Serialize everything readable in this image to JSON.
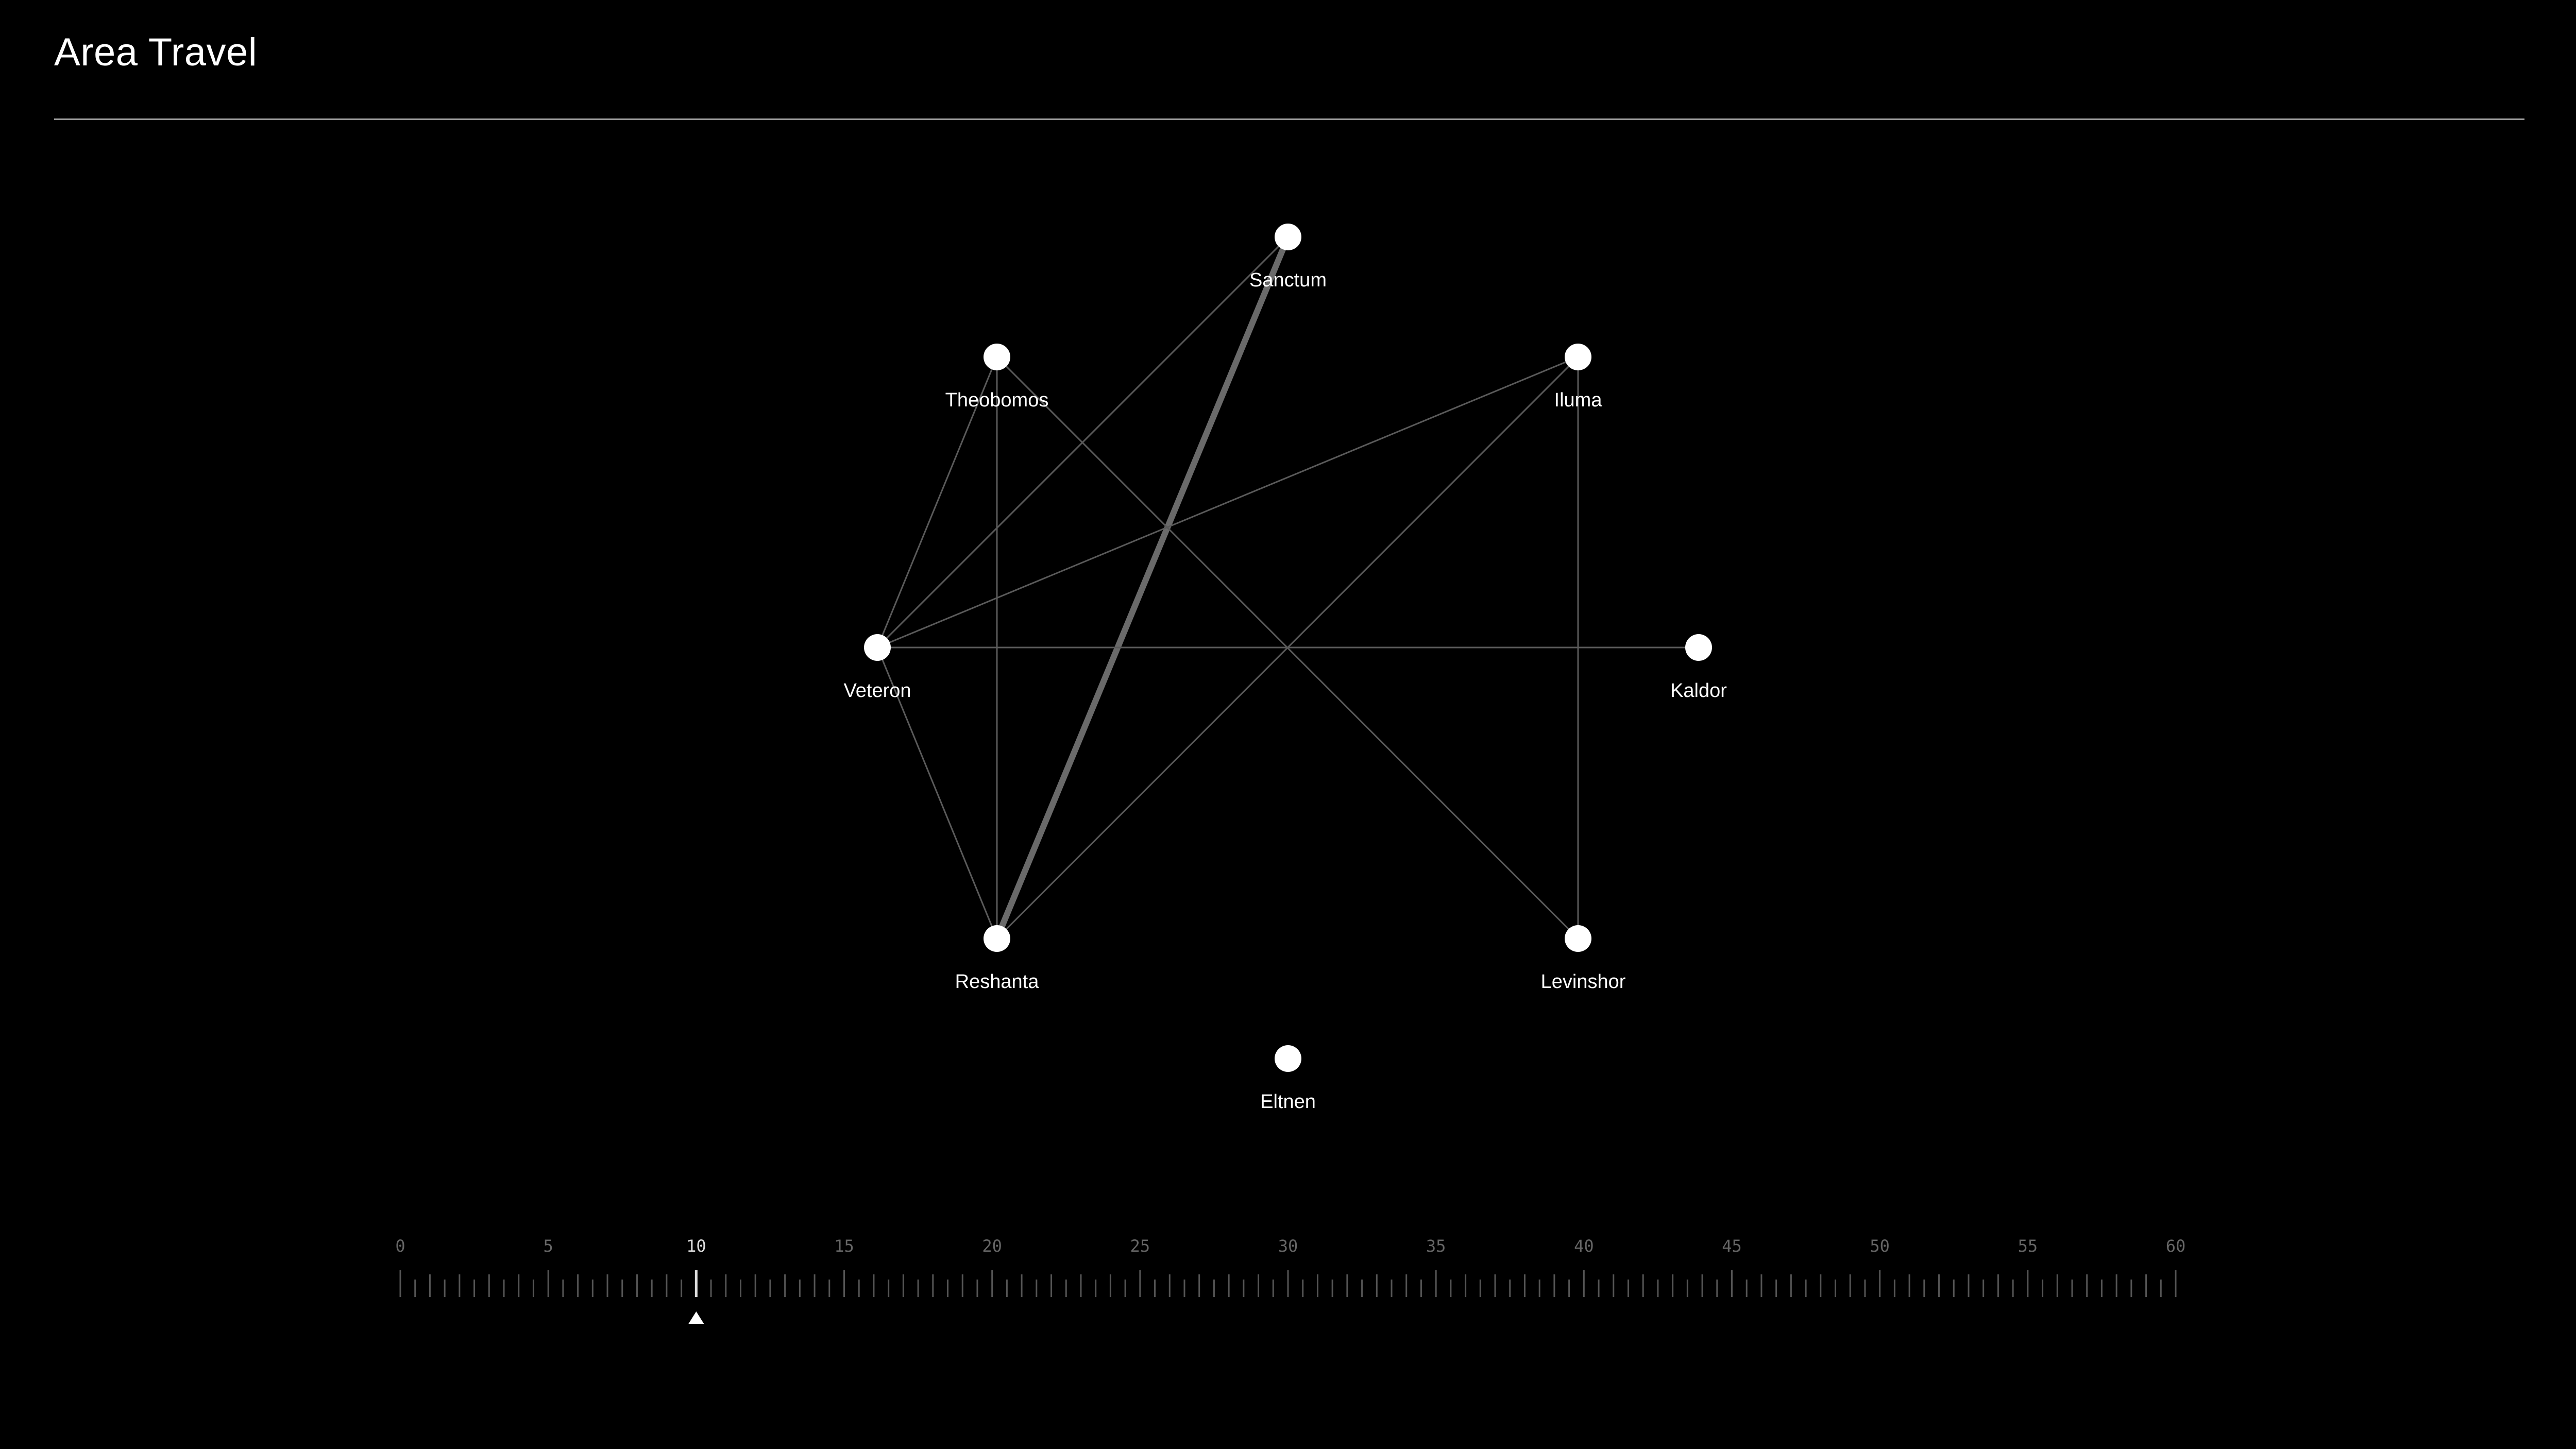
{
  "header": {
    "title": "Area Travel"
  },
  "nodes": [
    {
      "id": "sanctum",
      "label": "Sanctum"
    },
    {
      "id": "theobomos",
      "label": "Theobomos"
    },
    {
      "id": "iluma",
      "label": "Iluma"
    },
    {
      "id": "veteron",
      "label": "Veteron"
    },
    {
      "id": "kaldor",
      "label": "Kaldor"
    },
    {
      "id": "reshanta",
      "label": "Reshanta"
    },
    {
      "id": "levinshor",
      "label": "Levinshor"
    },
    {
      "id": "eltnen",
      "label": "Eltnen"
    }
  ],
  "edges": [
    {
      "from": "sanctum",
      "to": "reshanta",
      "highlighted": true
    },
    {
      "from": "sanctum",
      "to": "veteron",
      "highlighted": false
    },
    {
      "from": "theobomos",
      "to": "veteron",
      "highlighted": false
    },
    {
      "from": "theobomos",
      "to": "reshanta",
      "highlighted": false
    },
    {
      "from": "theobomos",
      "to": "levinshor",
      "highlighted": false
    },
    {
      "from": "iluma",
      "to": "veteron",
      "highlighted": false
    },
    {
      "from": "iluma",
      "to": "reshanta",
      "highlighted": false
    },
    {
      "from": "iluma",
      "to": "levinshor",
      "highlighted": false
    },
    {
      "from": "veteron",
      "to": "kaldor",
      "highlighted": false
    },
    {
      "from": "veteron",
      "to": "reshanta",
      "highlighted": false
    }
  ],
  "timeline": {
    "min": 0,
    "max": 60,
    "label_step": 5,
    "minor_step": 0.5,
    "labels": [
      "0",
      "5",
      "10",
      "15",
      "20",
      "25",
      "30",
      "35",
      "40",
      "45",
      "50",
      "55",
      "60"
    ],
    "current": 10
  },
  "colors": {
    "background": "#000000",
    "node": "#ffffff",
    "edge": "#5a5a5a",
    "edge_highlight": "#6a6a6a",
    "tick": "#555555",
    "tick_active": "#dddddd"
  }
}
